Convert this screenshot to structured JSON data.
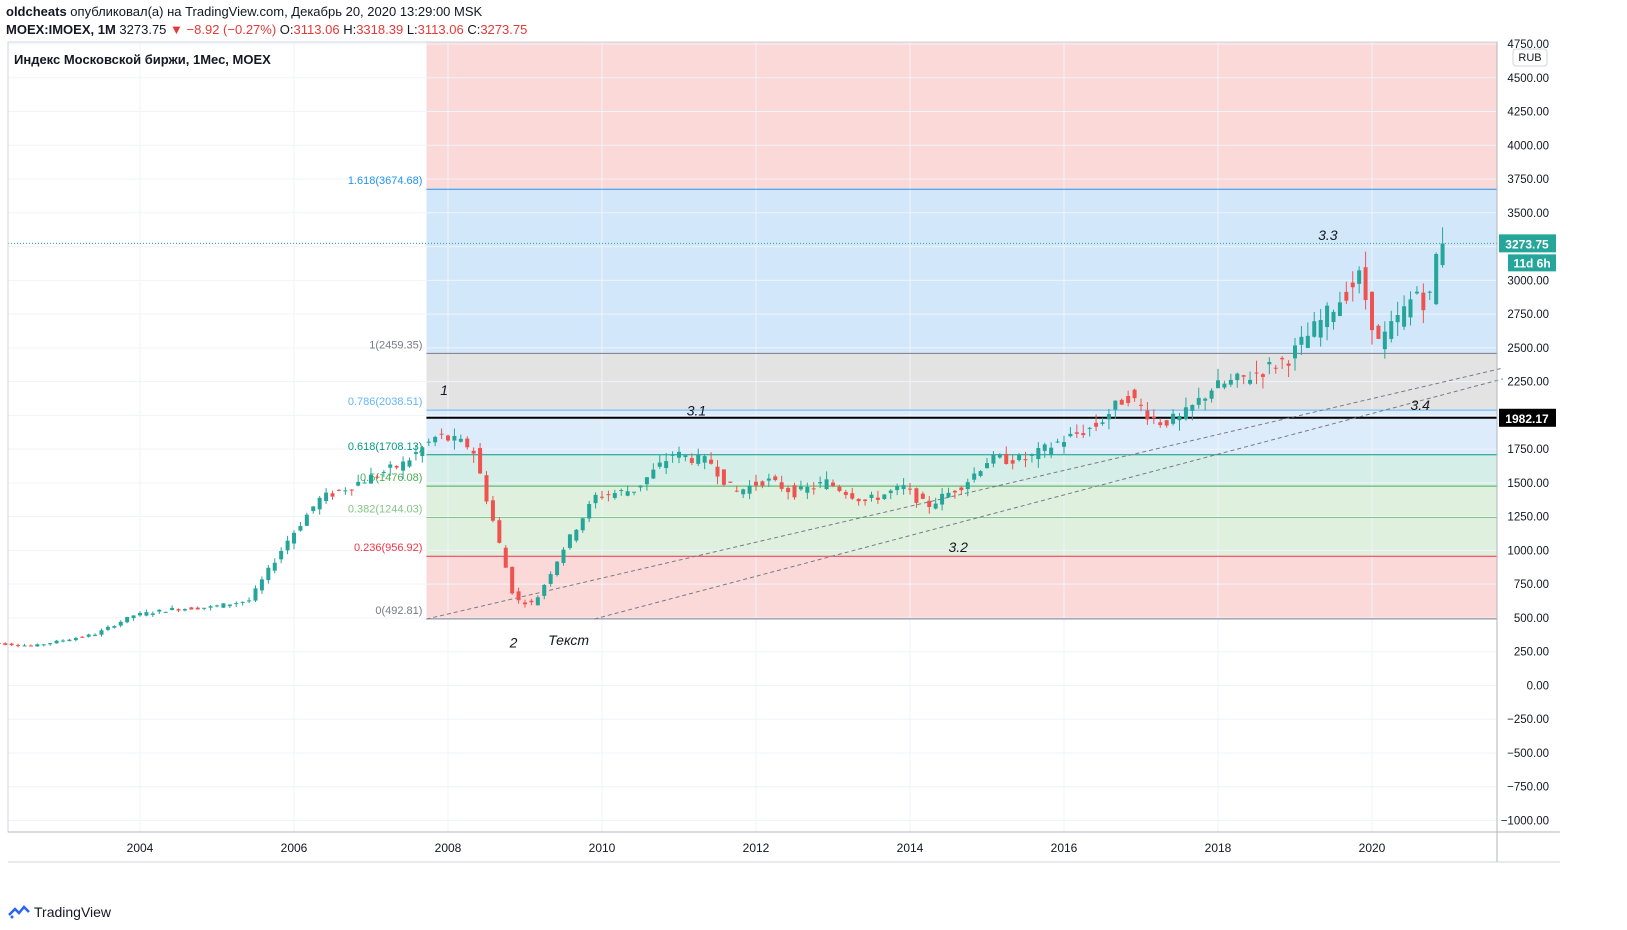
{
  "header": {
    "author": "oldcheats",
    "published": " опубликовал(а) на TradingView.com, Декабрь 20, 2020 13:29:00 MSK",
    "symbol": "MOEX:IMOEX, 1M",
    "last": "3273.75",
    "change": "−8.92 (−0.27%)",
    "o_label": "O:",
    "o_value": "3113.06",
    "h_label": "H:",
    "h_value": "3318.39",
    "l_label": "L:",
    "l_value": "3113.06",
    "c_label": "C:",
    "c_value": "3273.75"
  },
  "legend_title": "Индекс Московской биржи, 1Мес, MOEX",
  "footer": {
    "brand": "TradingView"
  },
  "colors": {
    "up": "#26a69a",
    "down": "#ef5350",
    "zone_red": "#fbd9d8",
    "zone_blue": "#d3e7fb",
    "zone_gray": "#e3e3e3",
    "zone_lightblue": "#ddecfb",
    "zone_teal": "#d5eee8",
    "zone_green": "#dff0de"
  },
  "chart_data": {
    "type": "candlestick",
    "currency": "RUB",
    "ylim": [
      -1050,
      4800
    ],
    "yticks": [
      4750,
      4500,
      4250,
      4000,
      3750,
      3500,
      3250,
      3000,
      2750,
      2500,
      2250,
      2000,
      1750,
      1500,
      1250,
      1000,
      750,
      500,
      250,
      0,
      -250,
      -500,
      -750,
      -1000
    ],
    "xtick_labels": [
      "2004",
      "2006",
      "2008",
      "2010",
      "2012",
      "2014",
      "2016",
      "2018",
      "2020"
    ],
    "xtick_years": [
      2004,
      2006,
      2008,
      2010,
      2012,
      2014,
      2016,
      2018,
      2020
    ],
    "last_price": "3273.75",
    "countdown": "11d 6h",
    "horizontal_level": "1982.17",
    "fib_levels": [
      {
        "ratio": "0",
        "value": 492.81,
        "label": "0(492.81)",
        "color": "#787b86"
      },
      {
        "ratio": "0.236",
        "value": 956.92,
        "label": "0.236(956.92)",
        "color": "#f23645"
      },
      {
        "ratio": "0.382",
        "value": 1244.03,
        "label": "0.382(1244.03)",
        "color": "#81c784"
      },
      {
        "ratio": "0.5",
        "value": 1476.08,
        "label": "0.5(1476.08)",
        "color": "#4caf50"
      },
      {
        "ratio": "0.618",
        "value": 1708.13,
        "label": "0.618(1708.13)",
        "color": "#089981"
      },
      {
        "ratio": "0.786",
        "value": 2038.51,
        "label": "0.786(2038.51)",
        "color": "#64b5f6"
      },
      {
        "ratio": "1",
        "value": 2459.35,
        "label": "1(2459.35)",
        "color": "#787b86"
      },
      {
        "ratio": "1.618",
        "value": 3674.68,
        "label": "1.618(3674.68)",
        "color": "#2196f3"
      }
    ],
    "annotations": [
      {
        "text": "1",
        "t": 2007.9,
        "y": 2150
      },
      {
        "text": "2",
        "t": 2008.8,
        "y": 280
      },
      {
        "text": "Текст",
        "t": 2009.3,
        "y": 300
      },
      {
        "text": "3.1",
        "t": 2011.1,
        "y": 2000
      },
      {
        "text": "3.2",
        "t": 2014.5,
        "y": 990
      },
      {
        "text": "3.3",
        "t": 2019.3,
        "y": 3300
      },
      {
        "text": "3.4",
        "t": 2020.5,
        "y": 2040
      }
    ],
    "trendlines": [
      {
        "t1": 2007.72,
        "y1": 492,
        "t2": 2021.7,
        "y2": 2350
      },
      {
        "t1": 2009.9,
        "y1": 492,
        "t2": 2021.7,
        "y2": 2270
      }
    ],
    "anchors": [
      {
        "t": 2002.0,
        "o": 330,
        "c": 310
      },
      {
        "t": 2002.7,
        "o": 285,
        "c": 300
      },
      {
        "t": 2003.5,
        "o": 340,
        "c": 420
      },
      {
        "t": 2004.0,
        "o": 500,
        "c": 540
      },
      {
        "t": 2004.5,
        "o": 600,
        "c": 530
      },
      {
        "t": 2005.0,
        "o": 600,
        "c": 560
      },
      {
        "t": 2005.5,
        "o": 580,
        "c": 680
      },
      {
        "t": 2006.0,
        "o": 950,
        "c": 1200
      },
      {
        "t": 2006.4,
        "o": 1450,
        "c": 1300
      },
      {
        "t": 2006.9,
        "o": 1400,
        "c": 1600
      },
      {
        "t": 2007.5,
        "o": 1600,
        "c": 1680
      },
      {
        "t": 2007.95,
        "o": 1800,
        "c": 1900
      },
      {
        "t": 2008.4,
        "o": 1870,
        "c": 1660
      },
      {
        "t": 2008.7,
        "o": 1400,
        "c": 900
      },
      {
        "t": 2008.95,
        "o": 700,
        "c": 560
      },
      {
        "t": 2009.2,
        "o": 560,
        "c": 650
      },
      {
        "t": 2009.6,
        "o": 920,
        "c": 1150
      },
      {
        "t": 2010.0,
        "o": 1350,
        "c": 1450
      },
      {
        "t": 2010.5,
        "o": 1400,
        "c": 1500
      },
      {
        "t": 2011.0,
        "o": 1660,
        "c": 1770
      },
      {
        "t": 2011.5,
        "o": 1700,
        "c": 1600
      },
      {
        "t": 2011.8,
        "o": 1400,
        "c": 1450
      },
      {
        "t": 2012.2,
        "o": 1500,
        "c": 1550
      },
      {
        "t": 2012.6,
        "o": 1400,
        "c": 1450
      },
      {
        "t": 2013.0,
        "o": 1530,
        "c": 1480
      },
      {
        "t": 2013.5,
        "o": 1350,
        "c": 1380
      },
      {
        "t": 2014.0,
        "o": 1480,
        "c": 1450
      },
      {
        "t": 2014.3,
        "o": 1300,
        "c": 1350
      },
      {
        "t": 2014.8,
        "o": 1450,
        "c": 1550
      },
      {
        "t": 2015.1,
        "o": 1700,
        "c": 1650
      },
      {
        "t": 2015.6,
        "o": 1650,
        "c": 1700
      },
      {
        "t": 2016.0,
        "o": 1750,
        "c": 1850
      },
      {
        "t": 2016.5,
        "o": 1900,
        "c": 1950
      },
      {
        "t": 2016.9,
        "o": 2100,
        "c": 2200
      },
      {
        "t": 2017.3,
        "o": 2000,
        "c": 1900
      },
      {
        "t": 2017.6,
        "o": 1950,
        "c": 2000
      },
      {
        "t": 2018.0,
        "o": 2150,
        "c": 2250
      },
      {
        "t": 2018.5,
        "o": 2280,
        "c": 2300
      },
      {
        "t": 2019.0,
        "o": 2400,
        "c": 2450
      },
      {
        "t": 2019.5,
        "o": 2700,
        "c": 2800
      },
      {
        "t": 2019.92,
        "o": 3000,
        "c": 3050
      },
      {
        "t": 2020.17,
        "o": 2600,
        "c": 2450
      },
      {
        "t": 2020.5,
        "o": 2750,
        "c": 2800
      },
      {
        "t": 2020.7,
        "o": 2950,
        "c": 2950
      },
      {
        "t": 2020.8,
        "o": 2800,
        "c": 2700
      },
      {
        "t": 2020.92,
        "o": 3113,
        "c": 3273
      }
    ]
  }
}
